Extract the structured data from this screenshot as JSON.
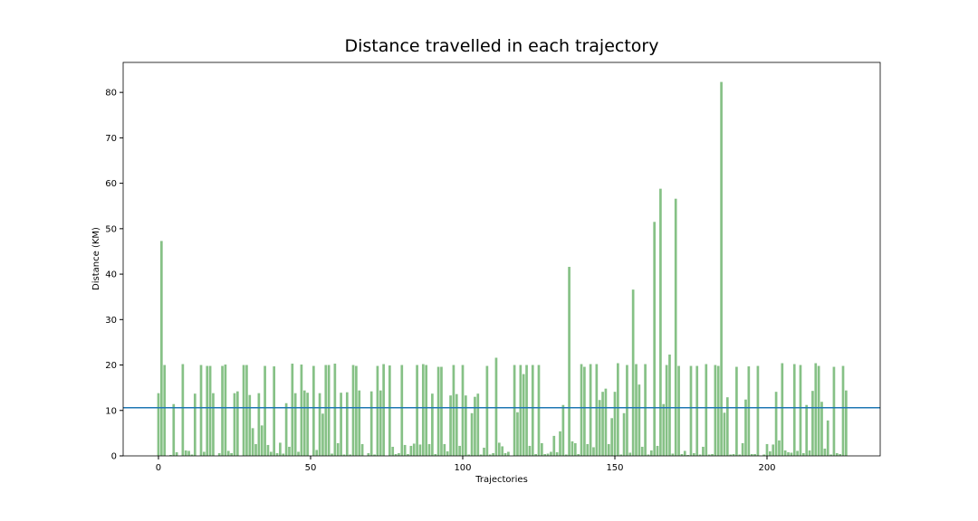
{
  "chart_data": {
    "type": "bar",
    "title": "Distance travelled in each trajectory",
    "xlabel": "Trajectories",
    "ylabel": "Distance (KM)",
    "color": "#86c186",
    "bar_width": 0.8,
    "x": [
      0,
      1,
      2,
      3,
      4,
      5,
      6,
      7,
      8,
      9,
      10,
      11,
      12,
      13,
      14,
      15,
      16,
      17,
      18,
      19,
      20,
      21,
      22,
      23,
      24,
      25,
      26,
      27,
      28,
      29,
      30,
      31,
      32,
      33,
      34,
      35,
      36,
      37,
      38,
      39,
      40,
      41,
      42,
      43,
      44,
      45,
      46,
      47,
      48,
      49,
      50,
      51,
      52,
      53,
      54,
      55,
      56,
      57,
      58,
      59,
      60,
      61,
      62,
      63,
      64,
      65,
      66,
      67,
      68,
      69,
      70,
      71,
      72,
      73,
      74,
      75,
      76,
      77,
      78,
      79,
      80,
      81,
      82,
      83,
      84,
      85,
      86,
      87,
      88,
      89,
      90,
      91,
      92,
      93,
      94,
      95,
      96,
      97,
      98,
      99,
      100,
      101,
      102,
      103,
      104,
      105,
      106,
      107,
      108,
      109,
      110,
      111,
      112,
      113,
      114,
      115,
      116,
      117,
      118,
      119,
      120,
      121,
      122,
      123,
      124,
      125,
      126,
      127,
      128,
      129,
      130,
      131,
      132,
      133,
      134,
      135,
      136,
      137,
      138,
      139,
      140,
      141,
      142,
      143,
      144,
      145,
      146,
      147,
      148,
      149,
      150,
      151,
      152,
      153,
      154,
      155,
      156,
      157,
      158,
      159,
      160,
      161,
      162,
      163,
      164,
      165,
      166,
      167,
      168,
      169,
      170,
      171,
      172,
      173,
      174,
      175,
      176,
      177,
      178,
      179,
      180,
      181,
      182,
      183,
      184,
      185,
      186,
      187,
      188,
      189,
      190,
      191,
      192,
      193,
      194,
      195,
      196,
      197,
      198,
      199,
      200,
      201,
      202,
      203,
      204,
      205,
      206,
      207,
      208,
      209,
      210,
      211,
      212,
      213,
      214,
      215,
      216,
      217,
      218,
      219,
      220,
      221,
      222,
      223,
      224,
      225,
      226
    ],
    "values": [
      13.8,
      47.3,
      20,
      0,
      0.2,
      11.4,
      0.8,
      0,
      20.2,
      1.2,
      1.1,
      0.3,
      13.7,
      0,
      20,
      0.9,
      19.8,
      19.8,
      13.8,
      0,
      0.6,
      19.8,
      20.1,
      1.1,
      0.6,
      13.8,
      14.2,
      0,
      20,
      20,
      13.4,
      6.1,
      2.6,
      13.8,
      6.7,
      19.8,
      2.4,
      0.9,
      19.7,
      0.6,
      2.9,
      0.5,
      11.6,
      2,
      20.3,
      13.8,
      0.9,
      20.1,
      14.4,
      13.9,
      0,
      19.8,
      1.3,
      13.8,
      9.3,
      20,
      20,
      0.5,
      20.3,
      2.8,
      13.9,
      0.3,
      14,
      0.3,
      20,
      19.8,
      14.4,
      2.6,
      0,
      0.6,
      14.2,
      0.3,
      19.8,
      14.4,
      20.2,
      0,
      19.9,
      2,
      0.4,
      0.6,
      20,
      2.4,
      0.4,
      2.2,
      2.7,
      20,
      2.5,
      20.2,
      20,
      2.6,
      13.7,
      0.4,
      19.6,
      19.6,
      2.6,
      1,
      13.3,
      20,
      13.6,
      2.2,
      20,
      13.3,
      0.3,
      9.4,
      13,
      13.7,
      0.3,
      1.8,
      19.8,
      0.3,
      0.6,
      21.6,
      2.9,
      2.1,
      0.6,
      0.9,
      0,
      20,
      9.6,
      20,
      18,
      20,
      2.2,
      20,
      0.4,
      20,
      2.8,
      0.4,
      0.5,
      0.9,
      4.4,
      0.8,
      5.4,
      11.2,
      0.3,
      41.6,
      3.2,
      2.8,
      0.4,
      20.2,
      19.6,
      2.6,
      20.2,
      1.9,
      20.2,
      12.3,
      14.1,
      14.8,
      2.6,
      8.3,
      14.1,
      20.4,
      0.3,
      9.4,
      20,
      0.7,
      36.6,
      20.2,
      15.7,
      2,
      20.2,
      0.3,
      1.2,
      51.5,
      2.2,
      58.8,
      11.4,
      20,
      22.3,
      0.5,
      56.6,
      19.8,
      0.4,
      1.1,
      0.2,
      19.8,
      0.6,
      19.8,
      0.3,
      2,
      20.2,
      0.3,
      0.4,
      20,
      19.8,
      82.3,
      9.5,
      12.9,
      0.3,
      0.4,
      19.6,
      0.3,
      2.8,
      12.4,
      19.7,
      0.4,
      0.4,
      19.8,
      0,
      0.3,
      2.6,
      1,
      2.5,
      14.1,
      3.4,
      20.4,
      1.2,
      0.8,
      0.7,
      20.2,
      1.1,
      20,
      0.6,
      11.2,
      1.2,
      14.3,
      20.4,
      19.8,
      11.9,
      1.6,
      7.8,
      0.3,
      19.6,
      0.6,
      0.4,
      19.8,
      14.4
    ],
    "hline": 10.6,
    "hline_color": "#1f77b4",
    "xlim": [
      -11.6,
      237.2
    ],
    "ylim": [
      0,
      86.6
    ],
    "xticks": [
      0,
      50,
      100,
      150,
      200
    ],
    "yticks": [
      0,
      10,
      20,
      30,
      40,
      50,
      60,
      70,
      80
    ]
  }
}
